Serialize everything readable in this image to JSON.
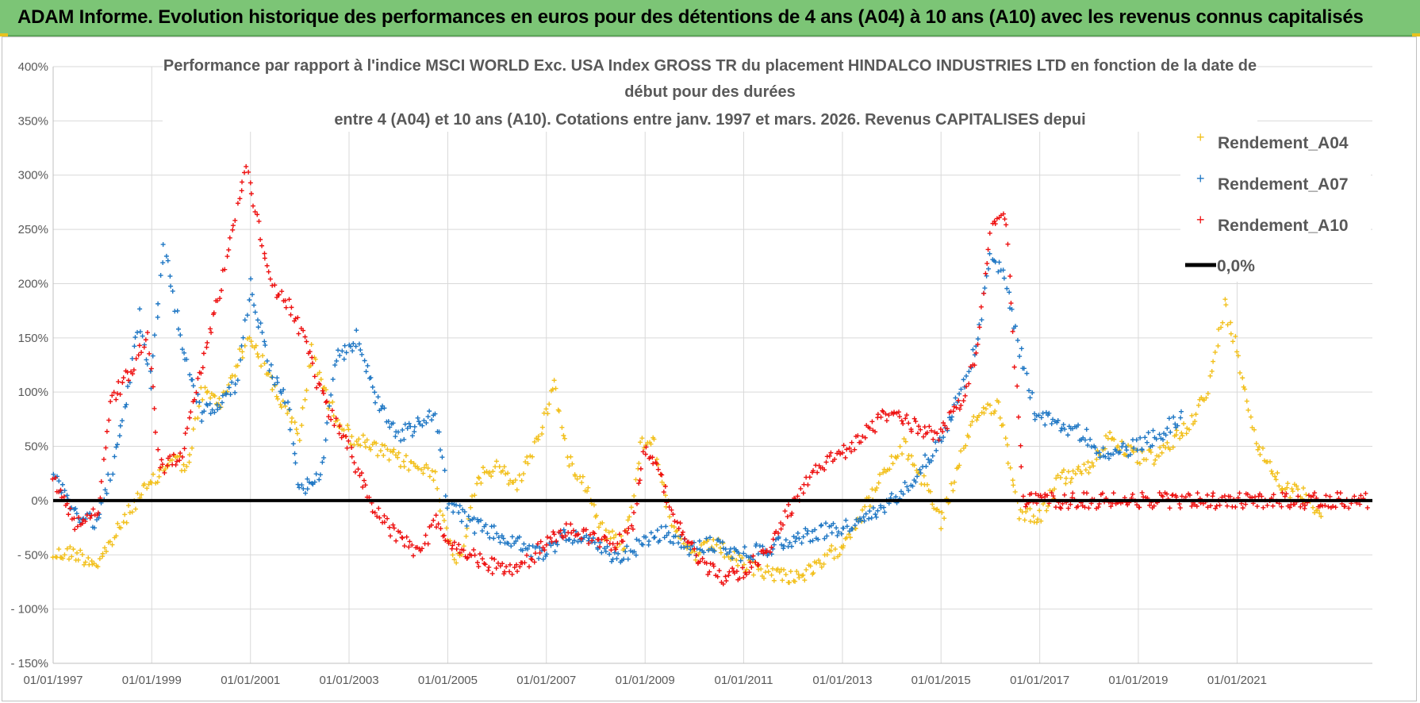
{
  "banner": {
    "title": "ADAM Informe. Evolution historique des performances en euros pour des détentions de 4 ans (A04) à 10 ans (A10) avec les revenus connus capitalisés"
  },
  "colors": {
    "banner_bg": "#7cc576",
    "A04": "#f2c01c",
    "A07": "#1f77c4",
    "A10": "#ee1111",
    "zero_line": "#000000",
    "grid": "#d9d9d9"
  },
  "chart_data": {
    "type": "scatter",
    "title_lines": [
      "Performance par rapport à l'indice MSCI WORLD Exc. USA Index GROSS TR  du placement HINDALCO INDUSTRIES LTD en fonction de la date de",
      "début pour des durées",
      "entre 4 (A04) et 10 ans (A10). Cotations entre janv. 1997 et mars. 2026. Revenus CAPITALISES depui"
    ],
    "x_ticks": [
      "01/01/1997",
      "01/01/1999",
      "01/01/2001",
      "01/01/2003",
      "01/01/2005",
      "01/01/2007",
      "01/01/2009",
      "01/01/2011",
      "01/01/2013",
      "01/01/2015",
      "01/01/2017",
      "01/01/2019",
      "01/01/2021"
    ],
    "x_range": [
      "1997-01-01",
      "2023-09-30"
    ],
    "y_ticks": [
      "400%",
      "350%",
      "300%",
      "250%",
      "200%",
      "150%",
      "100%",
      "50%",
      "0%",
      "- 50%",
      "- 100%",
      "- 150%"
    ],
    "ylim": [
      -150,
      400
    ],
    "y_unit": "%",
    "grid": "horizontal",
    "legend_position": "right",
    "series": [
      {
        "name": "Rendement_A04",
        "points": [
          [
            "1997-01-01",
            -50
          ],
          [
            "1997-06-01",
            -48
          ],
          [
            "1997-12-01",
            -58
          ],
          [
            "1998-06-01",
            -20
          ],
          [
            "1998-10-01",
            5
          ],
          [
            "1999-01-01",
            15
          ],
          [
            "1999-06-01",
            40
          ],
          [
            "1999-10-01",
            30
          ],
          [
            "2000-01-01",
            100
          ],
          [
            "2000-06-01",
            90
          ],
          [
            "2000-10-01",
            130
          ],
          [
            "2001-01-01",
            150
          ],
          [
            "2001-06-01",
            110
          ],
          [
            "2001-10-01",
            80
          ],
          [
            "2002-01-01",
            60
          ],
          [
            "2002-04-01",
            140
          ],
          [
            "2002-08-01",
            90
          ],
          [
            "2003-01-01",
            60
          ],
          [
            "2003-06-01",
            50
          ],
          [
            "2003-12-01",
            40
          ],
          [
            "2004-06-01",
            30
          ],
          [
            "2004-10-01",
            25
          ],
          [
            "2005-01-01",
            -40
          ],
          [
            "2005-04-01",
            -55
          ],
          [
            "2005-08-01",
            20
          ],
          [
            "2006-01-01",
            30
          ],
          [
            "2006-06-01",
            15
          ],
          [
            "2006-10-01",
            50
          ],
          [
            "2007-01-01",
            80
          ],
          [
            "2007-03-01",
            110
          ],
          [
            "2007-06-01",
            40
          ],
          [
            "2007-10-01",
            20
          ],
          [
            "2008-03-01",
            -30
          ],
          [
            "2008-08-01",
            -40
          ],
          [
            "2008-12-01",
            50
          ],
          [
            "2009-03-01",
            60
          ],
          [
            "2009-08-01",
            -30
          ],
          [
            "2010-01-01",
            -50
          ],
          [
            "2010-06-01",
            -40
          ],
          [
            "2011-01-01",
            -60
          ],
          [
            "2011-06-01",
            -65
          ],
          [
            "2012-01-01",
            -70
          ],
          [
            "2012-06-01",
            -65
          ],
          [
            "2013-01-01",
            -40
          ],
          [
            "2013-06-01",
            -10
          ],
          [
            "2013-12-01",
            30
          ],
          [
            "2014-04-01",
            50
          ],
          [
            "2014-10-01",
            10
          ],
          [
            "2015-01-01",
            -20
          ],
          [
            "2015-06-01",
            40
          ],
          [
            "2015-10-01",
            80
          ],
          [
            "2016-03-01",
            90
          ],
          [
            "2016-08-01",
            -10
          ],
          [
            "2017-01-01",
            -15
          ],
          [
            "2017-06-01",
            20
          ],
          [
            "2018-01-01",
            30
          ],
          [
            "2018-06-01",
            60
          ],
          [
            "2018-12-01",
            40
          ],
          [
            "2019-06-01",
            40
          ],
          [
            "2020-01-01",
            70
          ],
          [
            "2020-06-01",
            100
          ],
          [
            "2020-10-01",
            180
          ],
          [
            "2021-01-01",
            140
          ],
          [
            "2021-06-01",
            50
          ],
          [
            "2022-01-01",
            10
          ],
          [
            "2022-06-01",
            5
          ],
          [
            "2022-10-01",
            -15
          ]
        ]
      },
      {
        "name": "Rendement_A07",
        "points": [
          [
            "1997-01-01",
            25
          ],
          [
            "1997-06-01",
            -10
          ],
          [
            "1997-12-01",
            -20
          ],
          [
            "1998-06-01",
            70
          ],
          [
            "1998-10-01",
            170
          ],
          [
            "1999-01-01",
            110
          ],
          [
            "1999-04-01",
            240
          ],
          [
            "1999-08-01",
            150
          ],
          [
            "2000-01-01",
            80
          ],
          [
            "2000-06-01",
            90
          ],
          [
            "2000-10-01",
            110
          ],
          [
            "2001-01-01",
            200
          ],
          [
            "2001-06-01",
            120
          ],
          [
            "2001-10-01",
            90
          ],
          [
            "2002-01-01",
            10
          ],
          [
            "2002-06-01",
            20
          ],
          [
            "2002-10-01",
            130
          ],
          [
            "2003-03-01",
            150
          ],
          [
            "2003-08-01",
            90
          ],
          [
            "2004-01-01",
            60
          ],
          [
            "2004-06-01",
            70
          ],
          [
            "2004-10-01",
            80
          ],
          [
            "2005-01-01",
            0
          ],
          [
            "2005-06-01",
            -20
          ],
          [
            "2005-12-01",
            -30
          ],
          [
            "2006-06-01",
            -40
          ],
          [
            "2006-12-01",
            -50
          ],
          [
            "2007-06-01",
            -30
          ],
          [
            "2007-12-01",
            -40
          ],
          [
            "2008-06-01",
            -55
          ],
          [
            "2008-12-01",
            -40
          ],
          [
            "2009-06-01",
            -30
          ],
          [
            "2009-12-01",
            -45
          ],
          [
            "2010-06-01",
            -40
          ],
          [
            "2010-12-01",
            -50
          ],
          [
            "2011-06-01",
            -45
          ],
          [
            "2012-01-01",
            -35
          ],
          [
            "2012-06-01",
            -30
          ],
          [
            "2013-01-01",
            -25
          ],
          [
            "2013-06-01",
            -20
          ],
          [
            "2014-01-01",
            0
          ],
          [
            "2014-06-01",
            20
          ],
          [
            "2014-12-01",
            50
          ],
          [
            "2015-06-01",
            100
          ],
          [
            "2015-10-01",
            150
          ],
          [
            "2016-01-01",
            230
          ],
          [
            "2016-05-01",
            200
          ],
          [
            "2016-08-01",
            140
          ],
          [
            "2016-12-01",
            80
          ],
          [
            "2017-06-01",
            70
          ],
          [
            "2017-12-01",
            60
          ],
          [
            "2018-06-01",
            40
          ],
          [
            "2018-12-01",
            50
          ],
          [
            "2019-06-01",
            60
          ],
          [
            "2019-12-01",
            80
          ]
        ]
      },
      {
        "name": "Rendement_A10",
        "points": [
          [
            "1997-01-01",
            20
          ],
          [
            "1997-06-01",
            -20
          ],
          [
            "1997-12-01",
            -10
          ],
          [
            "1998-03-01",
            90
          ],
          [
            "1998-08-01",
            120
          ],
          [
            "1998-12-01",
            150
          ],
          [
            "1999-03-01",
            30
          ],
          [
            "1999-08-01",
            40
          ],
          [
            "2000-01-01",
            120
          ],
          [
            "2000-06-01",
            200
          ],
          [
            "2000-12-01",
            310
          ],
          [
            "2001-06-01",
            200
          ],
          [
            "2001-12-01",
            170
          ],
          [
            "2002-06-01",
            100
          ],
          [
            "2002-10-01",
            70
          ],
          [
            "2003-01-01",
            50
          ],
          [
            "2003-06-01",
            0
          ],
          [
            "2003-12-01",
            -30
          ],
          [
            "2004-06-01",
            -50
          ],
          [
            "2004-10-01",
            -20
          ],
          [
            "2005-01-01",
            -40
          ],
          [
            "2005-06-01",
            -50
          ],
          [
            "2005-12-01",
            -60
          ],
          [
            "2006-06-01",
            -65
          ],
          [
            "2006-10-01",
            -50
          ],
          [
            "2007-01-01",
            -40
          ],
          [
            "2007-06-01",
            -25
          ],
          [
            "2007-12-01",
            -35
          ],
          [
            "2008-06-01",
            -40
          ],
          [
            "2008-10-01",
            -20
          ],
          [
            "2009-01-01",
            50
          ],
          [
            "2009-06-01",
            10
          ],
          [
            "2009-10-01",
            -30
          ],
          [
            "2010-03-01",
            -60
          ],
          [
            "2010-08-01",
            -70
          ],
          [
            "2011-01-01",
            -65
          ],
          [
            "2011-06-01",
            -50
          ],
          [
            "2011-12-01",
            -10
          ],
          [
            "2012-06-01",
            30
          ],
          [
            "2012-12-01",
            40
          ],
          [
            "2013-06-01",
            60
          ],
          [
            "2013-12-01",
            80
          ],
          [
            "2014-06-01",
            70
          ],
          [
            "2014-12-01",
            60
          ],
          [
            "2015-06-01",
            90
          ],
          [
            "2015-10-01",
            140
          ],
          [
            "2016-01-01",
            250
          ],
          [
            "2016-05-01",
            260
          ],
          [
            "2016-09-01",
            0
          ],
          [
            "2018-01-01",
            0
          ],
          [
            "2020-01-01",
            0
          ],
          [
            "2022-01-01",
            0
          ],
          [
            "2023-09-01",
            0
          ]
        ]
      }
    ],
    "reference_line": {
      "name": "0,0%",
      "y": 0
    }
  }
}
